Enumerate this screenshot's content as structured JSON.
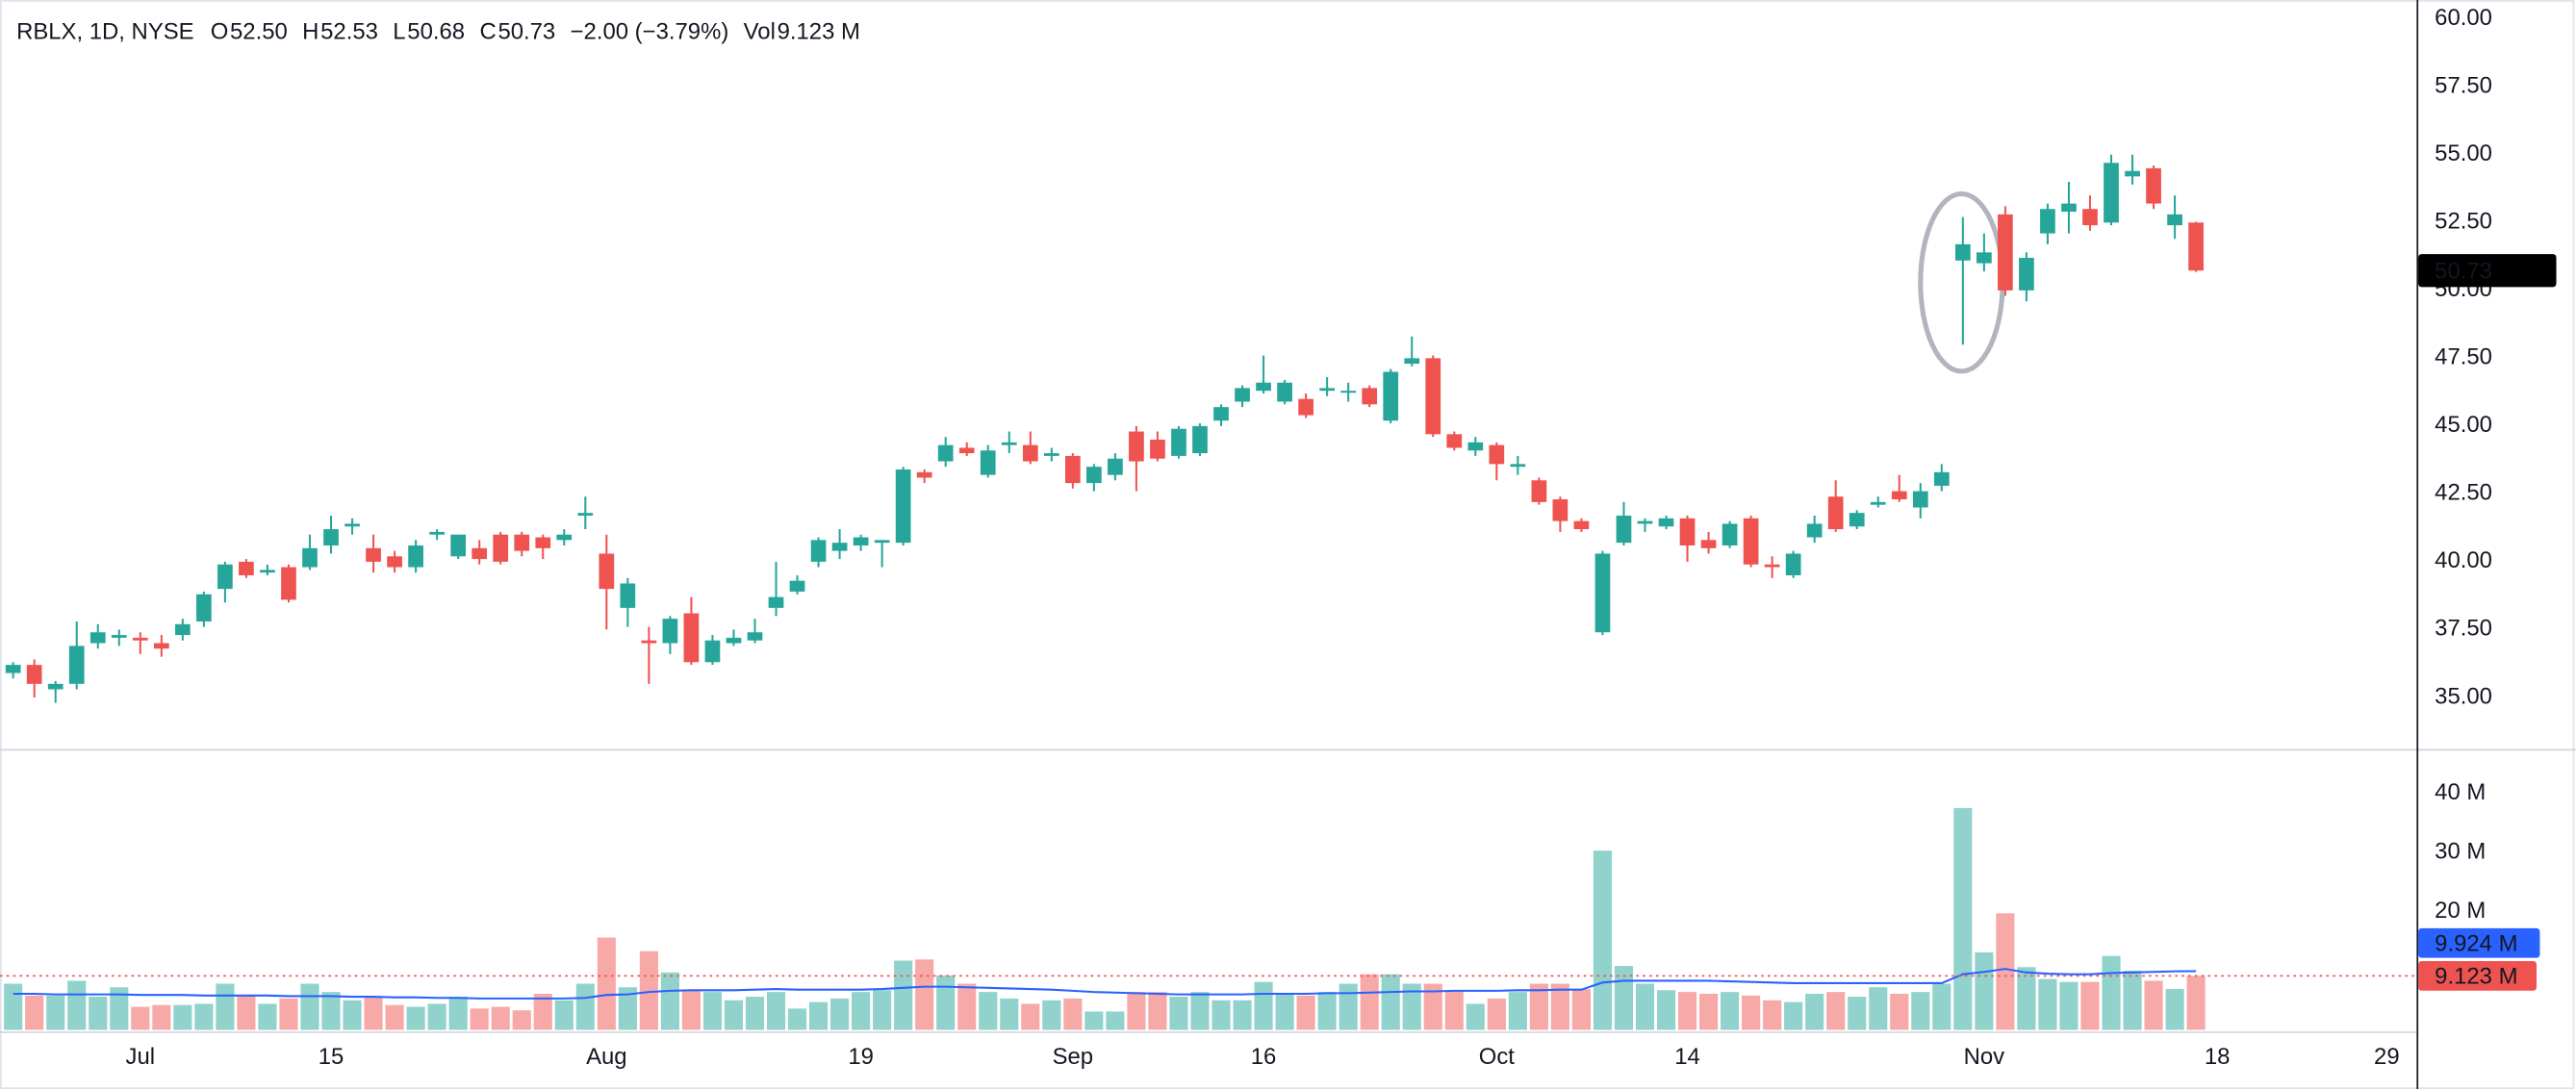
{
  "chart_data": {
    "type": "candlestick",
    "header": {
      "symbol": "RBLX, 1D, NYSE",
      "items": [
        {
          "key": "O",
          "value": "52.50"
        },
        {
          "key": "H",
          "value": "52.53"
        },
        {
          "key": "L",
          "value": "50.68"
        },
        {
          "key": "C",
          "value": "50.73"
        },
        {
          "value": "−2.00 (−3.79%)"
        },
        {
          "key": "Vol",
          "value": "9.123 M"
        }
      ]
    },
    "categories": [
      null,
      null,
      null,
      null,
      null,
      null,
      "Jul",
      null,
      null,
      null,
      null,
      null,
      null,
      null,
      null,
      "15",
      null,
      null,
      null,
      null,
      null,
      null,
      null,
      null,
      null,
      null,
      null,
      null,
      "Aug",
      null,
      null,
      null,
      null,
      null,
      null,
      null,
      null,
      null,
      null,
      null,
      "19",
      null,
      null,
      null,
      null,
      null,
      null,
      null,
      null,
      null,
      "Sep",
      null,
      null,
      null,
      null,
      null,
      null,
      null,
      null,
      "16",
      null,
      null,
      null,
      null,
      null,
      null,
      null,
      null,
      null,
      null,
      "Oct",
      null,
      null,
      null,
      null,
      null,
      null,
      null,
      null,
      "14",
      null,
      null,
      null,
      null,
      null,
      null,
      null,
      null,
      null,
      null,
      null,
      null,
      null,
      "Nov",
      null,
      null,
      null,
      null,
      null,
      null,
      null,
      null,
      null,
      null,
      "18",
      null,
      null,
      null,
      null,
      null,
      null,
      null,
      "29"
    ],
    "open": [
      35.9,
      36.2,
      35.3,
      35.5,
      37.0,
      37.2,
      37.2,
      37.0,
      37.3,
      37.8,
      39.0,
      40.0,
      39.6,
      39.8,
      39.8,
      40.6,
      41.3,
      40.5,
      40.2,
      39.8,
      41.0,
      40.2,
      40.5,
      41.0,
      41.0,
      40.9,
      40.8,
      41.7,
      40.3,
      38.3,
      37.1,
      37.0,
      38.1,
      36.3,
      37.0,
      37.1,
      38.3,
      38.9,
      40.0,
      40.4,
      40.6,
      40.7,
      40.7,
      43.3,
      43.7,
      44.2,
      43.2,
      44.3,
      44.3,
      43.9,
      43.9,
      42.9,
      43.2,
      44.8,
      44.5,
      43.9,
      44.0,
      45.2,
      45.9,
      46.3,
      45.9,
      46.0,
      46.3,
      46.3,
      46.4,
      45.2,
      47.3,
      47.5,
      44.7,
      44.1,
      44.3,
      43.5,
      43.0,
      42.3,
      41.5,
      37.4,
      40.7,
      41.4,
      41.3,
      41.6,
      40.8,
      40.6,
      41.6,
      39.9,
      39.5,
      40.9,
      42.4,
      41.3,
      42.1,
      42.6,
      42.0,
      42.8,
      51.1,
      51.0,
      52.8,
      50.0,
      52.1,
      52.9,
      53.0,
      52.5,
      54.2,
      54.5,
      52.4,
      52.5,
      null,
      null,
      null,
      null,
      null,
      null,
      null,
      null,
      null
    ],
    "high": [
      36.3,
      36.4,
      35.6,
      37.8,
      37.7,
      37.5,
      37.4,
      37.3,
      37.9,
      38.9,
      40.0,
      40.1,
      39.9,
      39.9,
      41.0,
      41.7,
      41.6,
      41.0,
      40.4,
      40.8,
      41.2,
      41.0,
      40.8,
      41.1,
      41.1,
      41.0,
      41.2,
      42.4,
      41.0,
      39.4,
      37.6,
      38.0,
      38.7,
      37.3,
      37.5,
      37.9,
      40.0,
      39.5,
      40.9,
      41.2,
      41.0,
      40.8,
      43.5,
      43.4,
      44.6,
      44.4,
      44.3,
      44.8,
      44.8,
      44.2,
      44.0,
      43.6,
      44.0,
      45.0,
      44.8,
      45.0,
      45.1,
      45.8,
      46.5,
      47.6,
      46.7,
      46.2,
      46.8,
      46.6,
      46.5,
      47.1,
      48.3,
      47.6,
      44.8,
      44.6,
      44.4,
      43.9,
      43.1,
      42.4,
      41.6,
      40.4,
      42.2,
      41.6,
      41.7,
      41.7,
      41.1,
      41.5,
      41.7,
      40.2,
      40.4,
      41.7,
      43.0,
      41.9,
      42.4,
      43.2,
      42.9,
      43.6,
      52.7,
      52.1,
      53.1,
      51.4,
      53.2,
      54.0,
      53.5,
      55.0,
      55.0,
      54.6,
      53.5,
      52.53,
      null,
      null,
      null,
      null,
      null,
      null,
      null,
      null,
      null
    ],
    "low": [
      35.7,
      35.0,
      34.8,
      35.3,
      36.8,
      36.9,
      36.6,
      36.5,
      37.1,
      37.6,
      38.5,
      39.4,
      39.5,
      38.5,
      39.7,
      40.3,
      41.0,
      39.6,
      39.6,
      39.6,
      40.8,
      40.1,
      39.9,
      39.9,
      40.2,
      40.1,
      40.6,
      41.2,
      37.5,
      37.6,
      35.5,
      36.6,
      36.2,
      36.2,
      36.9,
      37.0,
      38.0,
      38.8,
      39.8,
      40.1,
      40.4,
      39.8,
      40.6,
      42.9,
      43.5,
      43.9,
      43.1,
      44.0,
      43.6,
      43.7,
      42.7,
      42.6,
      43.0,
      42.6,
      43.7,
      43.8,
      43.9,
      45.0,
      45.7,
      46.2,
      45.8,
      45.3,
      46.1,
      45.9,
      45.7,
      45.1,
      47.2,
      44.6,
      44.1,
      43.9,
      43.0,
      43.2,
      42.1,
      41.1,
      41.1,
      37.3,
      40.6,
      41.1,
      41.2,
      40.0,
      40.3,
      40.5,
      39.8,
      39.4,
      39.4,
      40.7,
      41.1,
      41.2,
      42.0,
      42.2,
      41.6,
      42.6,
      48.0,
      50.7,
      49.8,
      49.6,
      51.7,
      52.1,
      52.2,
      52.4,
      53.9,
      53.0,
      51.9,
      50.68,
      null,
      null,
      null,
      null,
      null,
      null,
      null,
      null,
      null
    ],
    "close": [
      36.2,
      35.5,
      35.5,
      36.9,
      37.4,
      37.3,
      37.1,
      36.8,
      37.7,
      38.8,
      39.9,
      39.5,
      39.7,
      38.6,
      40.5,
      41.2,
      41.4,
      40.0,
      39.8,
      40.6,
      41.1,
      41.0,
      40.1,
      40.0,
      40.4,
      40.5,
      41.0,
      41.8,
      39.0,
      39.2,
      37.0,
      37.9,
      36.3,
      37.1,
      37.2,
      37.4,
      38.7,
      39.3,
      40.8,
      40.7,
      40.9,
      40.8,
      43.4,
      43.1,
      44.3,
      44.0,
      44.1,
      44.4,
      43.7,
      44.0,
      42.9,
      43.5,
      43.8,
      43.7,
      43.8,
      44.9,
      45.0,
      45.7,
      46.4,
      46.6,
      46.6,
      45.4,
      46.4,
      46.3,
      45.8,
      47.0,
      47.5,
      44.7,
      44.2,
      44.4,
      43.6,
      43.6,
      42.2,
      41.5,
      41.2,
      40.3,
      41.7,
      41.5,
      41.6,
      40.6,
      40.5,
      41.4,
      39.9,
      39.8,
      40.3,
      41.4,
      41.2,
      41.8,
      42.2,
      42.3,
      42.6,
      43.3,
      51.7,
      51.4,
      50.0,
      51.2,
      53.0,
      53.2,
      52.4,
      54.7,
      54.4,
      53.2,
      52.8,
      50.73,
      null,
      null,
      null,
      null,
      null,
      null,
      null,
      null,
      null
    ],
    "up_color": "#26a69a",
    "down_color": "#ef5350",
    "ylim": [
      33.1,
      60.7
    ],
    "yticks": [
      {
        "value": 35,
        "label": "35.00"
      },
      {
        "value": 37.5,
        "label": "37.50"
      },
      {
        "value": 40,
        "label": "40.00"
      },
      {
        "value": 42.5,
        "label": "42.50"
      },
      {
        "value": 45,
        "label": "45.00"
      },
      {
        "value": 47.5,
        "label": "47.50"
      },
      {
        "value": 50,
        "label": "50.00"
      },
      {
        "value": 52.5,
        "label": "52.50"
      },
      {
        "value": 55,
        "label": "55.00"
      },
      {
        "value": 57.5,
        "label": "57.50"
      },
      {
        "value": 60,
        "label": "60.00"
      }
    ],
    "grid": false,
    "volume": {
      "values": [
        7.8,
        5.8,
        5.8,
        8.3,
        5.6,
        7.2,
        3.9,
        4.2,
        4.2,
        4.4,
        7.8,
        5.8,
        4.4,
        5.3,
        7.8,
        6.4,
        5.0,
        5.6,
        4.2,
        3.9,
        4.4,
        5.6,
        3.6,
        3.9,
        3.3,
        6.1,
        5.0,
        7.8,
        15.6,
        7.2,
        13.3,
        9.7,
        6.7,
        6.4,
        5.0,
        5.6,
        6.4,
        3.6,
        4.7,
        5.3,
        6.4,
        6.7,
        11.7,
        11.9,
        9.2,
        7.8,
        6.4,
        5.3,
        4.4,
        5.0,
        5.3,
        3.1,
        3.1,
        6.4,
        6.4,
        5.6,
        6.4,
        5.0,
        5.0,
        8.1,
        6.1,
        5.8,
        6.4,
        7.8,
        9.4,
        9.4,
        7.8,
        7.8,
        6.7,
        4.4,
        5.3,
        6.4,
        7.8,
        7.8,
        6.9,
        30.3,
        10.8,
        7.8,
        6.7,
        6.4,
        6.1,
        6.4,
        5.8,
        5.0,
        4.7,
        6.1,
        6.4,
        5.6,
        7.2,
        6.1,
        6.4,
        7.8,
        37.5,
        13.1,
        19.7,
        10.6,
        8.6,
        8.1,
        8.1,
        12.5,
        10.0,
        8.3,
        6.9,
        9.123,
        null,
        null,
        null,
        null,
        null,
        null,
        null,
        null,
        null
      ],
      "last_value_label": "9.123 M",
      "ma_values": [
        6.1,
        6.1,
        6.0,
        6.0,
        6.0,
        6.0,
        5.9,
        5.9,
        5.9,
        5.8,
        5.8,
        5.8,
        5.8,
        5.7,
        5.7,
        5.7,
        5.6,
        5.6,
        5.5,
        5.5,
        5.4,
        5.4,
        5.3,
        5.3,
        5.3,
        5.3,
        5.3,
        5.4,
        5.9,
        6.0,
        6.4,
        6.6,
        6.7,
        6.7,
        6.7,
        6.8,
        6.9,
        6.8,
        6.8,
        6.8,
        6.8,
        6.9,
        7.1,
        7.3,
        7.3,
        7.2,
        7.1,
        7.0,
        6.9,
        6.8,
        6.6,
        6.4,
        6.3,
        6.2,
        6.1,
        6.0,
        6.0,
        6.0,
        6.0,
        6.1,
        6.1,
        6.1,
        6.2,
        6.2,
        6.3,
        6.4,
        6.5,
        6.5,
        6.6,
        6.6,
        6.6,
        6.7,
        6.7,
        6.8,
        6.8,
        8.0,
        8.3,
        8.3,
        8.3,
        8.3,
        8.3,
        8.2,
        8.1,
        8.0,
        7.9,
        7.9,
        7.9,
        7.9,
        7.9,
        7.9,
        7.9,
        7.9,
        9.4,
        9.8,
        10.3,
        9.7,
        9.5,
        9.4,
        9.4,
        9.6,
        9.7,
        9.8,
        9.9,
        9.924,
        null,
        null,
        null,
        null,
        null,
        null,
        null,
        null,
        null
      ],
      "ma_last_label": "9.924 M",
      "ma_color": "#2962ff",
      "ylim": [
        0,
        47.2
      ],
      "yticks": [
        {
          "value": 20,
          "label": "20 M"
        },
        {
          "value": 30,
          "label": "30 M"
        },
        {
          "value": 40,
          "label": "40 M"
        }
      ]
    }
  }
}
